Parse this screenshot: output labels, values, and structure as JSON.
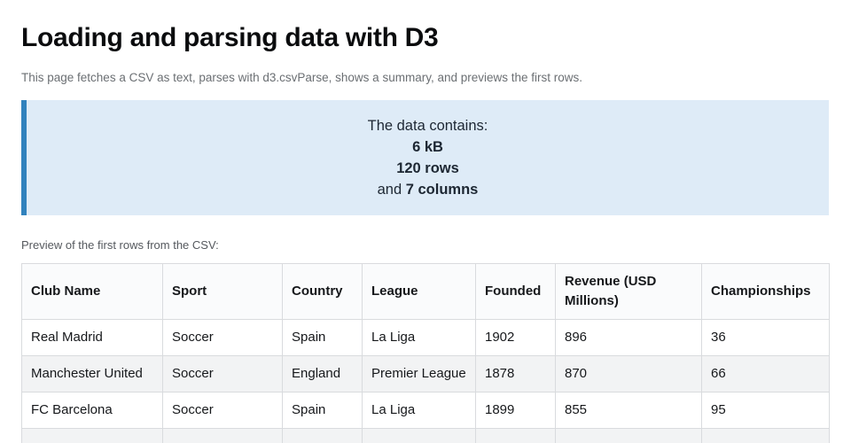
{
  "page": {
    "title": "Loading and parsing data with D3",
    "subtitle": "This page fetches a CSV as text, parses with d3.csvParse, shows a summary, and previews the first rows."
  },
  "summary": {
    "intro": "The data contains:",
    "size": "6 kB",
    "row_count": "120 rows",
    "and_label": "and ",
    "column_count": "7 columns",
    "accent_color": "#3182bd",
    "background_color": "#deebf7"
  },
  "preview": {
    "caption": "Preview of the first rows from the CSV:"
  },
  "table": {
    "headers": [
      "Club Name",
      "Sport",
      "Country",
      "League",
      "Founded",
      "Revenue (USD Millions)",
      "Championships"
    ],
    "rows": [
      [
        "Real Madrid",
        "Soccer",
        "Spain",
        "La Liga",
        "1902",
        "896",
        "36"
      ],
      [
        "Manchester United",
        "Soccer",
        "England",
        "Premier League",
        "1878",
        "870",
        "66"
      ],
      [
        "FC Barcelona",
        "Soccer",
        "Spain",
        "La Liga",
        "1899",
        "855",
        "95"
      ],
      [
        "",
        "",
        "",
        "",
        "",
        "",
        ""
      ]
    ]
  }
}
